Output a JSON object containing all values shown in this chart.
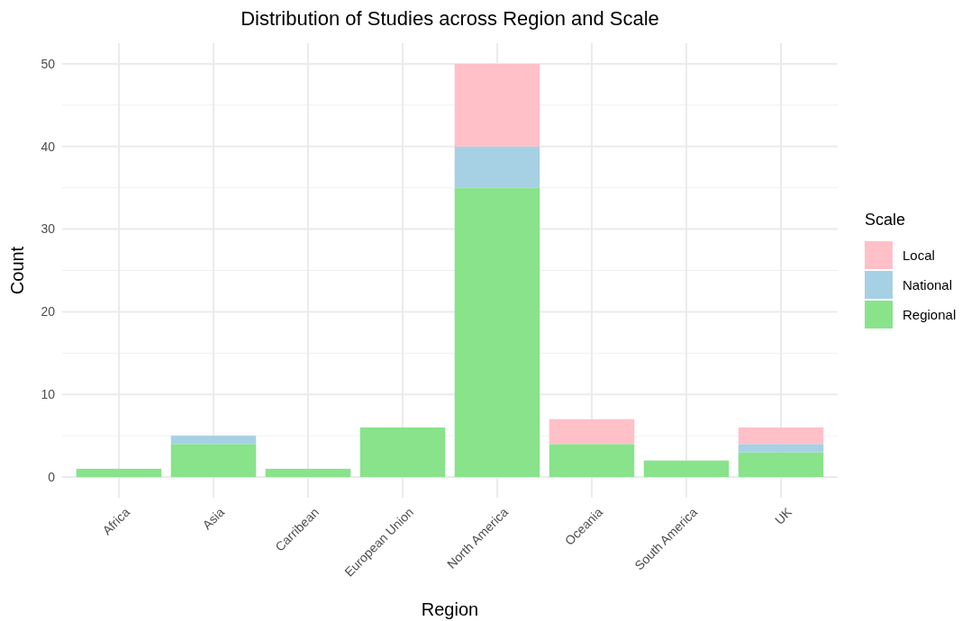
{
  "chart_data": {
    "type": "bar",
    "title": "Distribution of Studies across Region and Scale",
    "xlabel": "Region",
    "ylabel": "Count",
    "legend_title": "Scale",
    "categories": [
      "Africa",
      "Asia",
      "Carribean",
      "European Union",
      "North America",
      "Oceania",
      "South America",
      "UK"
    ],
    "stacked": true,
    "series": [
      {
        "name": "Regional",
        "color": "#88e38b",
        "values": [
          1,
          4,
          1,
          6,
          35,
          4,
          2,
          3
        ]
      },
      {
        "name": "National",
        "color": "#a6d0e4",
        "values": [
          0,
          1,
          0,
          0,
          5,
          0,
          0,
          1
        ]
      },
      {
        "name": "Local",
        "color": "#ffc0c8",
        "values": [
          0,
          0,
          0,
          0,
          10,
          3,
          0,
          2
        ]
      }
    ],
    "ylim": [
      -2.5,
      52.5
    ],
    "yticks": [
      0,
      10,
      20,
      30,
      40,
      50
    ],
    "grid": true,
    "legend": "right"
  }
}
